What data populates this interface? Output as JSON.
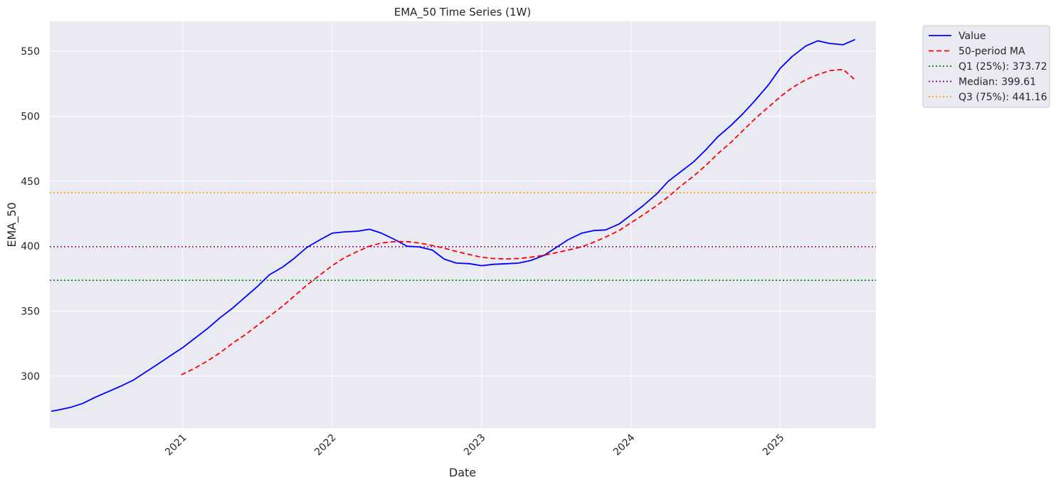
{
  "chart_data": {
    "type": "line",
    "title": "EMA_50 Time Series (1W)",
    "xlabel": "Date",
    "ylabel": "EMA_50",
    "xlim": [
      2020.11,
      2025.64
    ],
    "ylim": [
      260,
      573
    ],
    "grid": true,
    "legend_position": "outside-top-right",
    "x_ticks": [
      {
        "value": 2021,
        "label": "2021"
      },
      {
        "value": 2022,
        "label": "2022"
      },
      {
        "value": 2023,
        "label": "2023"
      },
      {
        "value": 2024,
        "label": "2024"
      },
      {
        "value": 2025,
        "label": "2025"
      }
    ],
    "y_ticks": [
      {
        "value": 300,
        "label": "300"
      },
      {
        "value": 350,
        "label": "350"
      },
      {
        "value": 400,
        "label": "400"
      },
      {
        "value": 450,
        "label": "450"
      },
      {
        "value": 500,
        "label": "500"
      },
      {
        "value": 550,
        "label": "550"
      }
    ],
    "series": [
      {
        "name": "Value",
        "color": "#0000ff",
        "style": "solid",
        "x": [
          2020.12,
          2020.17,
          2020.25,
          2020.33,
          2020.42,
          2020.5,
          2020.58,
          2020.67,
          2020.75,
          2020.83,
          2020.92,
          2021.0,
          2021.08,
          2021.17,
          2021.25,
          2021.33,
          2021.42,
          2021.5,
          2021.58,
          2021.67,
          2021.75,
          2021.83,
          2021.92,
          2022.0,
          2022.08,
          2022.17,
          2022.25,
          2022.33,
          2022.42,
          2022.5,
          2022.58,
          2022.67,
          2022.75,
          2022.83,
          2022.92,
          2023.0,
          2023.08,
          2023.17,
          2023.25,
          2023.33,
          2023.42,
          2023.5,
          2023.58,
          2023.67,
          2023.75,
          2023.83,
          2023.92,
          2024.0,
          2024.08,
          2024.17,
          2024.25,
          2024.33,
          2024.42,
          2024.5,
          2024.58,
          2024.67,
          2024.75,
          2024.83,
          2024.92,
          2025.0,
          2025.08,
          2025.17,
          2025.25,
          2025.33,
          2025.42,
          2025.5
        ],
        "values": [
          273,
          274,
          276,
          279,
          284,
          288,
          292,
          297,
          303,
          309,
          316,
          322,
          329,
          337,
          345,
          352,
          361,
          369,
          378,
          384,
          391,
          399,
          405,
          410,
          411,
          411.5,
          413,
          410,
          405,
          400,
          399.5,
          397,
          390,
          387,
          386.5,
          385,
          386,
          386.5,
          387,
          389,
          393,
          399,
          405,
          410,
          412,
          412.5,
          417,
          424,
          431,
          440,
          450,
          457,
          465,
          474,
          484,
          493,
          502,
          512,
          524,
          537,
          546,
          554,
          558,
          556,
          555,
          559
        ]
      },
      {
        "name": "50-period MA",
        "color": "#ff0000",
        "style": "dashed",
        "x": [
          2020.99,
          2021.08,
          2021.17,
          2021.25,
          2021.33,
          2021.42,
          2021.5,
          2021.58,
          2021.67,
          2021.75,
          2021.83,
          2021.92,
          2022.0,
          2022.08,
          2022.17,
          2022.25,
          2022.33,
          2022.42,
          2022.5,
          2022.58,
          2022.67,
          2022.75,
          2022.83,
          2022.92,
          2023.0,
          2023.08,
          2023.17,
          2023.25,
          2023.33,
          2023.42,
          2023.5,
          2023.58,
          2023.67,
          2023.75,
          2023.83,
          2023.92,
          2024.0,
          2024.08,
          2024.17,
          2024.25,
          2024.33,
          2024.42,
          2024.5,
          2024.58,
          2024.67,
          2024.75,
          2024.83,
          2024.92,
          2025.0,
          2025.08,
          2025.17,
          2025.25,
          2025.33,
          2025.42,
          2025.5
        ],
        "values": [
          301,
          306,
          312,
          318,
          325,
          332,
          339,
          346,
          354,
          362,
          370,
          378,
          385,
          391,
          396,
          400,
          402.5,
          403.5,
          403.5,
          402.5,
          400.5,
          398.5,
          396,
          393.5,
          391.5,
          390.5,
          390.2,
          390.5,
          391.5,
          393,
          395,
          397,
          399.5,
          403,
          407,
          412,
          418,
          424,
          431,
          438,
          446,
          454,
          462,
          471,
          480,
          489,
          498,
          507,
          515,
          522,
          528,
          532,
          535,
          536,
          528
        ]
      }
    ],
    "reference_lines": [
      {
        "name": "Q1 (25%): 373.72",
        "value": 373.72,
        "color": "#008000",
        "style": "dotted"
      },
      {
        "name": "Median: 399.61",
        "value": 399.61,
        "color": "#800080",
        "style": "dotted"
      },
      {
        "name": "Q3 (75%): 441.16",
        "value": 441.16,
        "color": "#ffa500",
        "style": "dotted"
      }
    ]
  }
}
